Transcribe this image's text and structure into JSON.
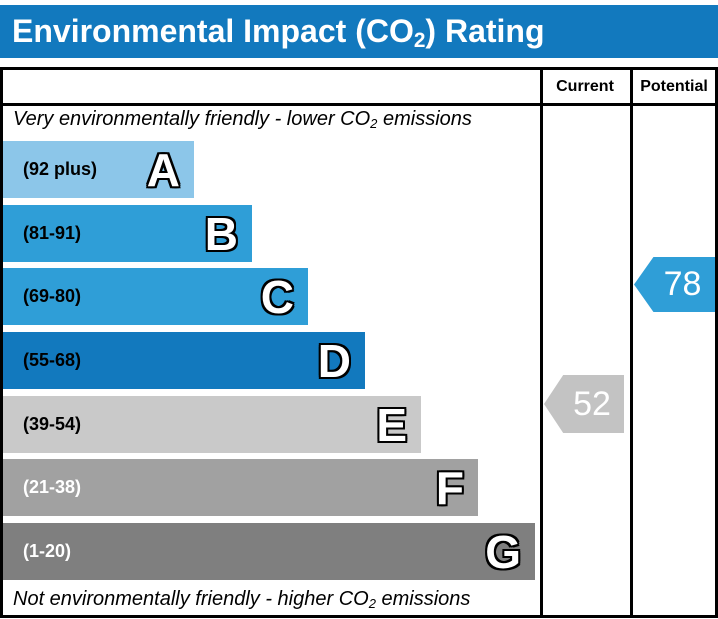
{
  "title": {
    "prefix": "Environmental Impact (CO",
    "subscript": "2",
    "suffix": ") Rating"
  },
  "columns": {
    "current": "Current",
    "potential": "Potential"
  },
  "top_note": {
    "prefix": "Very environmentally friendly - lower CO",
    "subscript": "2",
    "suffix": " emissions"
  },
  "bottom_note": {
    "prefix": "Not environmentally friendly - higher CO",
    "subscript": "2",
    "suffix": " emissions"
  },
  "bands": [
    {
      "letter": "A",
      "range": "(92 plus)",
      "color": "#8cc6e9",
      "label_color": "#000000"
    },
    {
      "letter": "B",
      "range": "(81-91)",
      "color": "#2f9ed7",
      "label_color": "#000000"
    },
    {
      "letter": "C",
      "range": "(69-80)",
      "color": "#2f9ed7",
      "label_color": "#000000"
    },
    {
      "letter": "D",
      "range": "(55-68)",
      "color": "#1279be",
      "label_color": "#000000"
    },
    {
      "letter": "E",
      "range": "(39-54)",
      "color": "#c9c9c9",
      "label_color": "#000000"
    },
    {
      "letter": "F",
      "range": "(21-38)",
      "color": "#a1a1a1",
      "label_color": "#ffffff"
    },
    {
      "letter": "G",
      "range": "(1-20)",
      "color": "#7f7f7f",
      "label_color": "#ffffff"
    }
  ],
  "current": {
    "value": "52",
    "arrow_color": "#c3c3c3"
  },
  "potential": {
    "value": "78",
    "arrow_color": "#2f9ed7"
  },
  "colors": {
    "title_bar": "#1279be",
    "border": "#000000"
  },
  "chart_data": {
    "type": "bar",
    "title": "Environmental Impact (CO2) Rating",
    "categories": [
      "A",
      "B",
      "C",
      "D",
      "E",
      "F",
      "G"
    ],
    "band_ranges": [
      "92 plus",
      "81-91",
      "69-80",
      "55-68",
      "39-54",
      "21-38",
      "1-20"
    ],
    "columns": [
      "Current",
      "Potential"
    ],
    "current_rating": 52,
    "current_band": "E",
    "potential_rating": 78,
    "potential_band": "C",
    "annotations": [
      "Very environmentally friendly - lower CO2 emissions",
      "Not environmentally friendly - higher CO2 emissions"
    ]
  }
}
